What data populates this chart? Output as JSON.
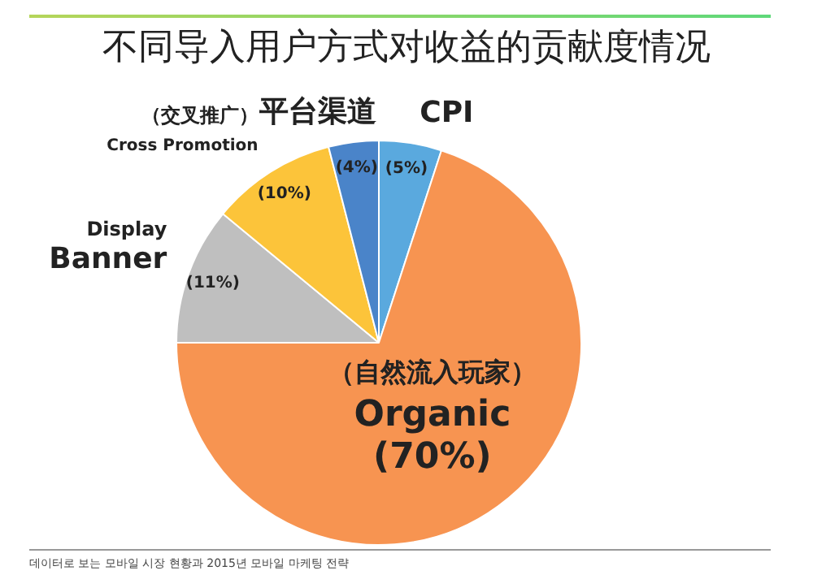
{
  "chart_data": {
    "type": "pie",
    "title": "不同导入用户方式对收益的贡献度情况",
    "categories": [
      "CPI",
      "（自然流入玩家）\nOrganic",
      "Display\nBanner",
      "（交叉推广）\nCross Promotion",
      "平台渠道"
    ],
    "values": [
      5,
      70,
      11,
      10,
      4
    ],
    "colors": [
      "#5aa9de",
      "#f79451",
      "#bfbfbf",
      "#fcc43a",
      "#4a84c9"
    ],
    "value_labels": [
      "(5%)",
      "(70%)",
      "(11%)",
      "(10%)",
      "(4%)"
    ],
    "legend": false,
    "annotations": [
      "데이터로 보는 모바일 시장 현황과 2015년 모바일 마케팅 전략"
    ]
  }
}
